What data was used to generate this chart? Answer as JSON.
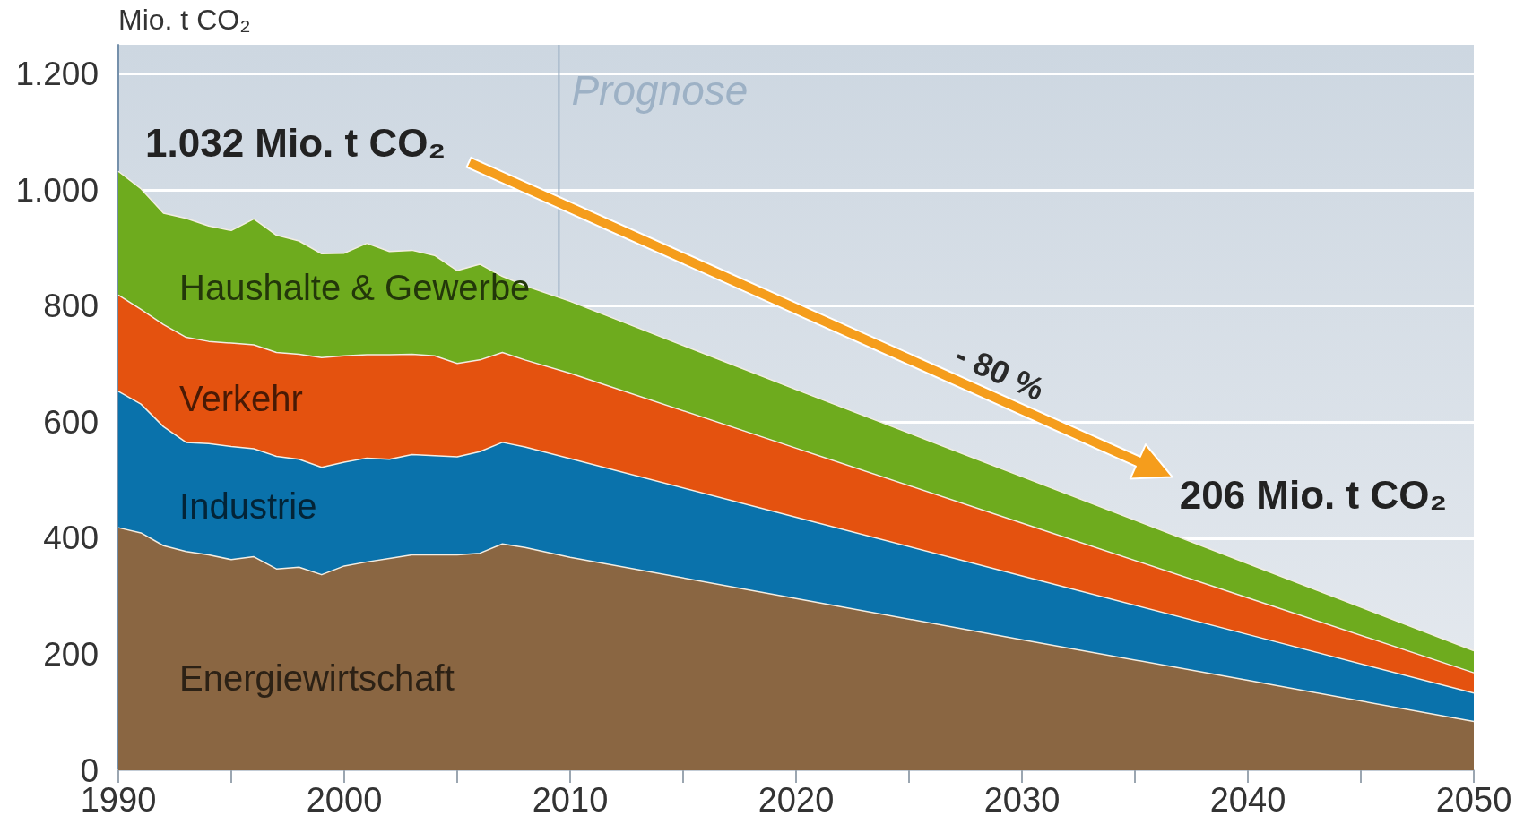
{
  "chart_data": {
    "type": "area",
    "stacked": true,
    "ylabel": "Mio. t CO₂",
    "x": [
      1990,
      1991,
      1992,
      1993,
      1994,
      1995,
      1996,
      1997,
      1998,
      1999,
      2000,
      2001,
      2002,
      2003,
      2004,
      2005,
      2006,
      2007,
      2008,
      2010,
      2020,
      2030,
      2040,
      2050
    ],
    "series": [
      {
        "name": "Energiewirtschaft",
        "color": "#8a6642",
        "values": [
          418,
          409,
          387,
          377,
          371,
          363,
          368,
          347,
          350,
          337,
          352,
          359,
          365,
          371,
          371,
          371,
          374,
          390,
          384,
          367,
          296,
          225,
          155,
          84
        ]
      },
      {
        "name": "Industrie",
        "color": "#0a72ab",
        "values": [
          235,
          222,
          205,
          188,
          192,
          195,
          186,
          194,
          186,
          185,
          179,
          179,
          171,
          173,
          171,
          169,
          175,
          175,
          173,
          170,
          140,
          110,
          79,
          49
        ]
      },
      {
        "name": "Verkehr",
        "color": "#e4520f",
        "values": [
          166,
          163,
          176,
          181,
          176,
          178,
          179,
          179,
          181,
          189,
          183,
          178,
          180,
          173,
          172,
          161,
          158,
          155,
          150,
          147,
          119,
          91,
          63,
          35
        ]
      },
      {
        "name": "Haushalte & Gewerbe",
        "color": "#6eab1e",
        "values": [
          213,
          208,
          192,
          205,
          199,
          194,
          217,
          202,
          195,
          179,
          177,
          192,
          178,
          179,
          173,
          160,
          165,
          131,
          128,
          124,
          101,
          80,
          59,
          38
        ]
      }
    ],
    "xlim": [
      1990,
      2050
    ],
    "xticks": [
      1990,
      {
        "value": 1995,
        "label": null
      },
      2000,
      {
        "value": 2005,
        "label": null
      },
      2010,
      {
        "value": 2015,
        "label": null
      },
      2020,
      {
        "value": 2025,
        "label": null
      },
      2030,
      {
        "value": 2035,
        "label": null
      },
      2040,
      {
        "value": 2045,
        "label": null
      },
      2050
    ],
    "ylim": [
      0,
      1250
    ],
    "yticks": [
      0,
      200,
      400,
      600,
      800,
      {
        "value": 1000,
        "label": "1.000"
      },
      {
        "value": 1200,
        "label": "1.200"
      }
    ],
    "grid": "y",
    "ref_lines": [
      {
        "axis": "x",
        "value": 2009.5,
        "label": "Prognose",
        "color": "#9db1c5"
      }
    ],
    "annotations": [
      {
        "text": "1.032 Mio. t CO₂",
        "x": 1990,
        "y": 1032
      },
      "- 80 %",
      "206 Mio. t CO₂"
    ]
  }
}
